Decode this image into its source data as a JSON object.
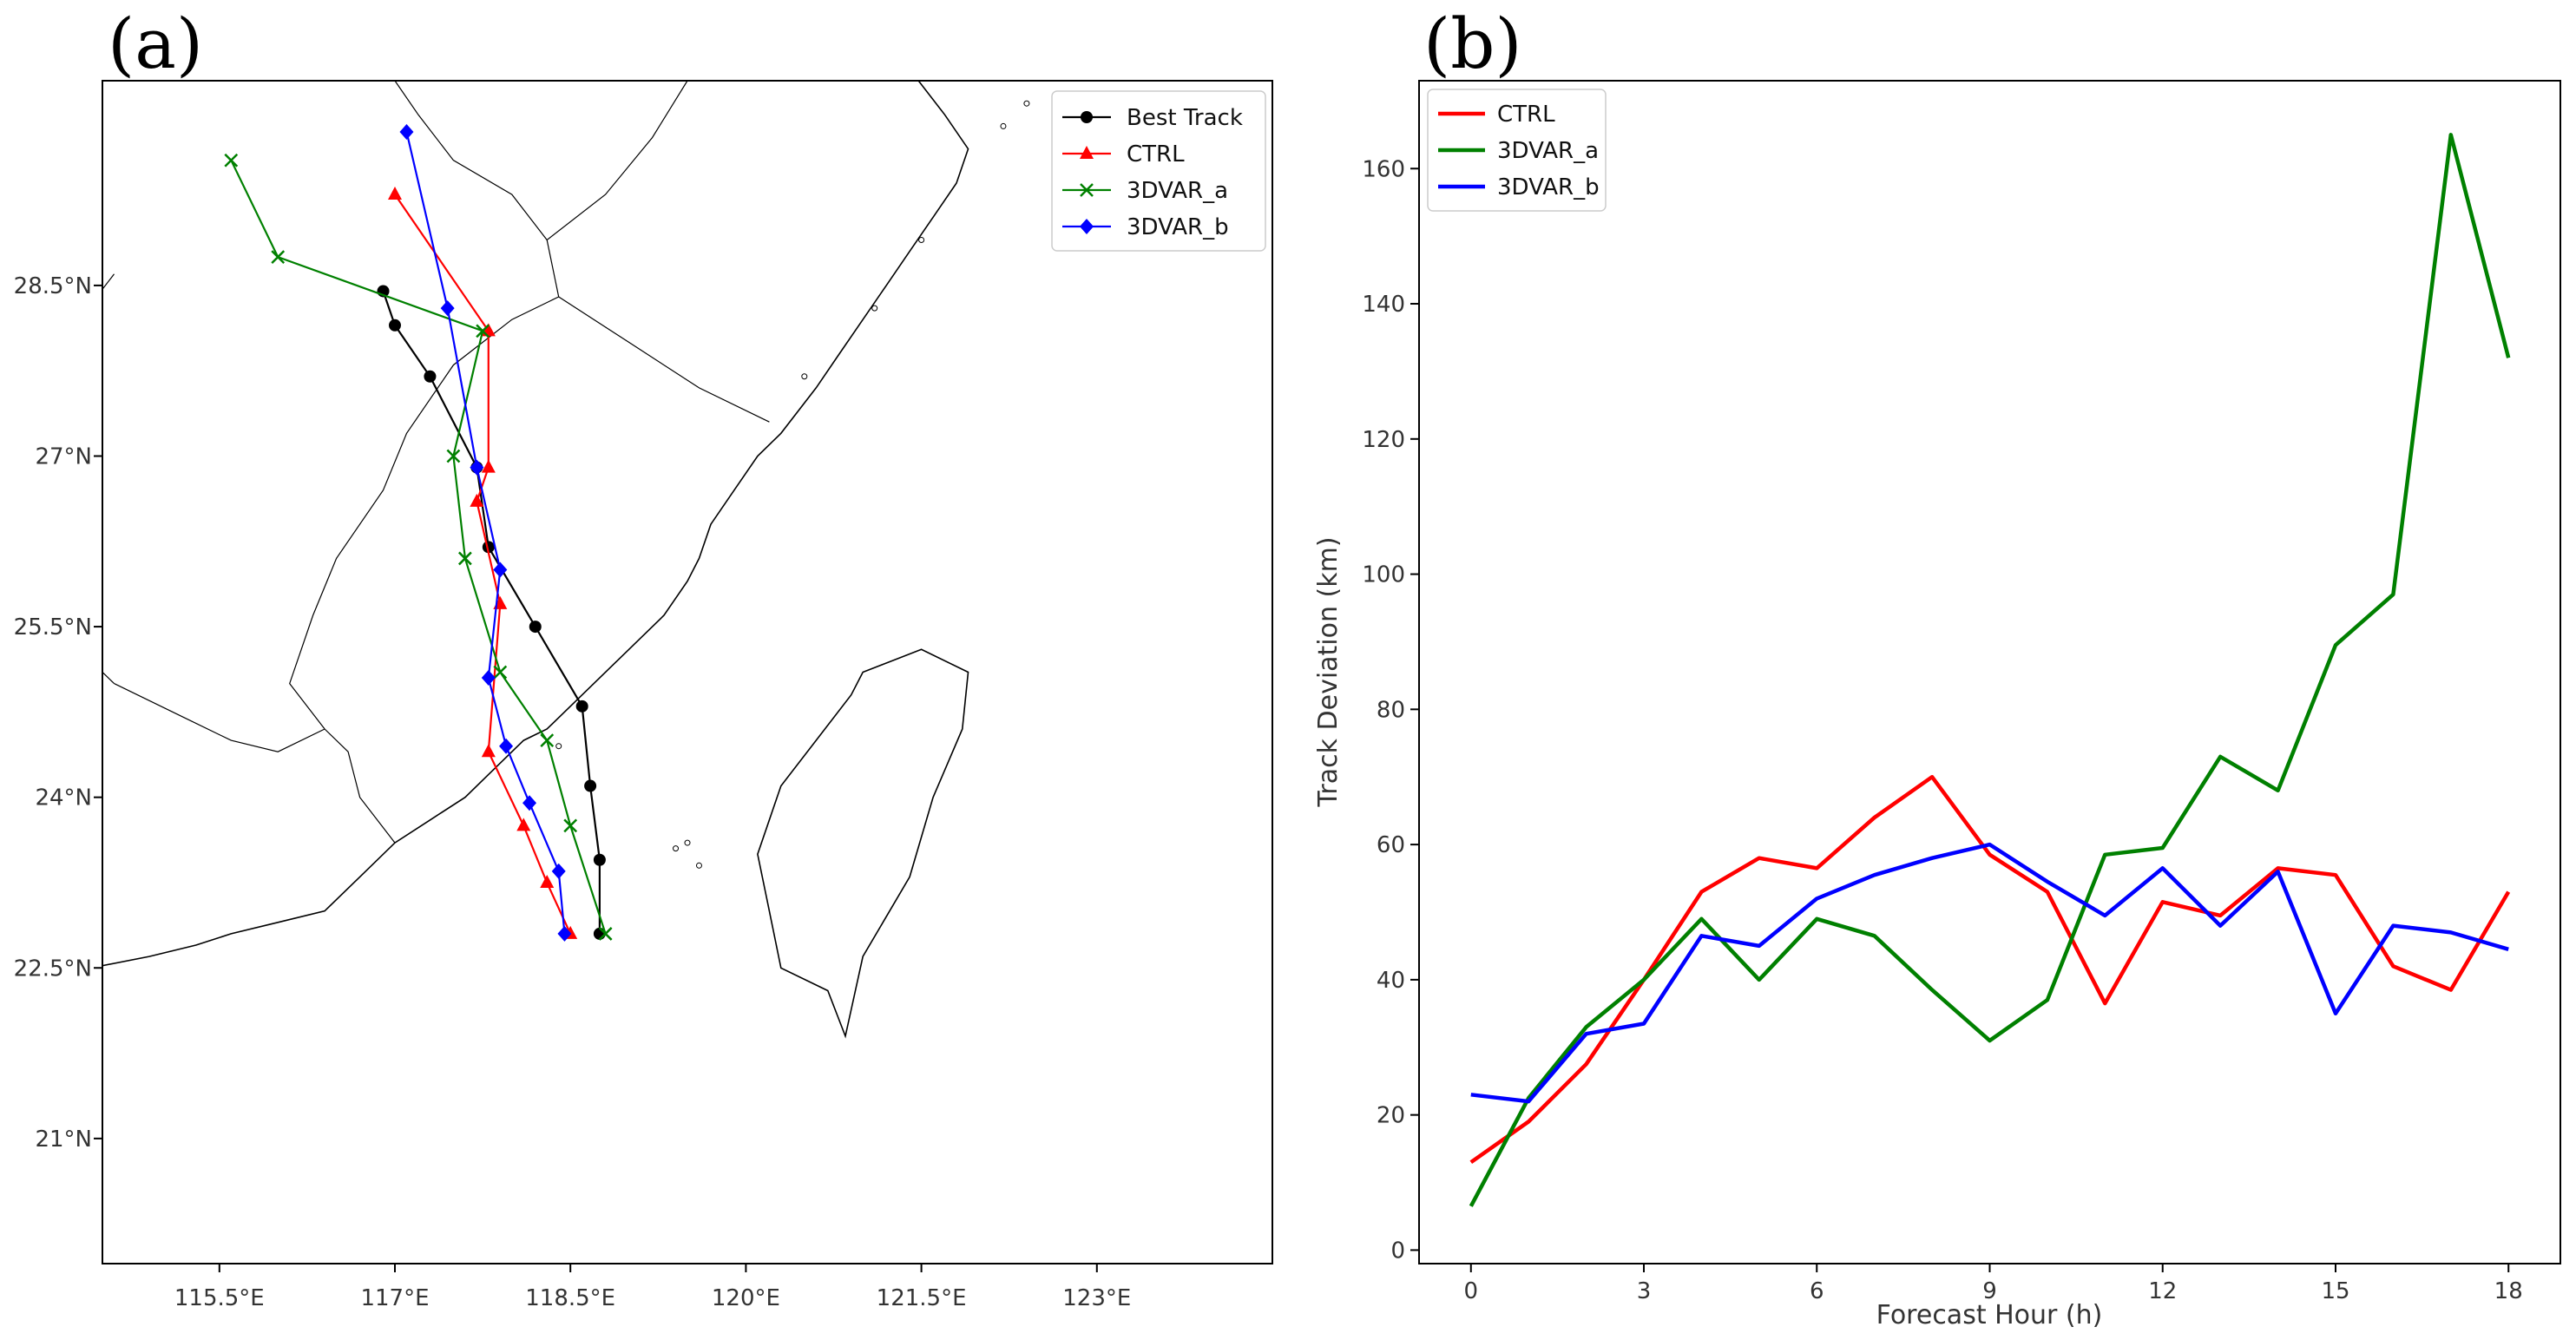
{
  "panels": {
    "a_label": "(a)",
    "b_label": "(b)"
  },
  "colors": {
    "best_track": "#000000",
    "ctrl": "#ff0000",
    "var_a": "#008000",
    "var_b": "#0000ff",
    "coast": "#000000"
  },
  "chart_data": [
    {
      "type": "line",
      "subtype": "track-map",
      "title": "",
      "xlim": [
        114.5,
        124.5
      ],
      "ylim": [
        19.9,
        30.3
      ],
      "xticks": [
        115.5,
        117,
        118.5,
        120,
        121.5,
        123
      ],
      "xtick_labels": [
        "115.5°E",
        "117°E",
        "118.5°E",
        "120°E",
        "121.5°E",
        "123°E"
      ],
      "yticks": [
        21,
        22.5,
        24,
        25.5,
        27,
        28.5
      ],
      "ytick_labels": [
        "21°N",
        "22.5°N",
        "24°N",
        "25.5°N",
        "27°N",
        "28.5°N"
      ],
      "legend_position": "top-right",
      "series": [
        {
          "name": "Best Track",
          "marker": "circle",
          "color_key": "best_track",
          "lon": [
            118.75,
            118.75,
            118.67,
            118.6,
            118.2,
            117.8,
            117.7,
            117.3,
            117.0,
            116.9
          ],
          "lat": [
            22.8,
            23.45,
            24.1,
            24.8,
            25.5,
            26.2,
            26.9,
            27.7,
            28.15,
            28.45
          ]
        },
        {
          "name": "CTRL",
          "marker": "triangle",
          "color_key": "ctrl",
          "lon": [
            118.5,
            118.3,
            118.1,
            117.8,
            117.9,
            117.7,
            117.8,
            117.8,
            117.0
          ],
          "lat": [
            22.8,
            23.25,
            23.75,
            24.4,
            25.7,
            26.6,
            26.9,
            28.1,
            29.3
          ]
        },
        {
          "name": "3DVAR_a",
          "marker": "x",
          "color_key": "var_a",
          "lon": [
            118.8,
            118.5,
            118.3,
            117.9,
            117.6,
            117.5,
            117.75,
            116.0,
            115.6
          ],
          "lat": [
            22.8,
            23.75,
            24.5,
            25.1,
            26.1,
            27.0,
            28.1,
            28.75,
            29.6
          ]
        },
        {
          "name": "3DVAR_b",
          "marker": "diamond",
          "color_key": "var_b",
          "lon": [
            118.45,
            118.4,
            118.15,
            117.95,
            117.8,
            117.9,
            117.7,
            117.45,
            117.1
          ],
          "lat": [
            22.8,
            23.35,
            23.95,
            24.45,
            25.05,
            26.0,
            26.9,
            28.3,
            29.85
          ]
        }
      ]
    },
    {
      "type": "line",
      "title": "",
      "xlabel": "Forecast Hour (h)",
      "ylabel": "Track Deviation (km)",
      "xlim": [
        -0.9,
        18.9
      ],
      "ylim": [
        -2,
        173
      ],
      "xticks": [
        0,
        3,
        6,
        9,
        12,
        15,
        18
      ],
      "yticks": [
        0,
        20,
        40,
        60,
        80,
        100,
        120,
        140,
        160
      ],
      "legend_position": "top-left",
      "x": [
        0,
        1,
        2,
        3,
        4,
        5,
        6,
        7,
        8,
        9,
        10,
        11,
        12,
        13,
        14,
        15,
        16,
        17,
        18
      ],
      "series": [
        {
          "name": "CTRL",
          "color_key": "ctrl",
          "values": [
            13,
            19,
            27.5,
            40,
            53,
            58,
            56.5,
            64,
            70,
            58.5,
            53,
            36.5,
            51.5,
            49.5,
            56.5,
            55.5,
            42,
            38.5,
            53
          ]
        },
        {
          "name": "3DVAR_a",
          "color_key": "var_a",
          "values": [
            6.5,
            22.5,
            33,
            40,
            49,
            40,
            49,
            46.5,
            38.5,
            31,
            37,
            58.5,
            59.5,
            73,
            68,
            89.5,
            97,
            165,
            132
          ]
        },
        {
          "name": "3DVAR_b",
          "color_key": "var_b",
          "values": [
            23,
            22,
            32,
            33.5,
            46.5,
            45,
            52,
            55.5,
            58,
            60,
            54.5,
            49.5,
            56.5,
            48,
            56,
            35,
            48,
            47,
            44.5
          ]
        }
      ]
    }
  ]
}
